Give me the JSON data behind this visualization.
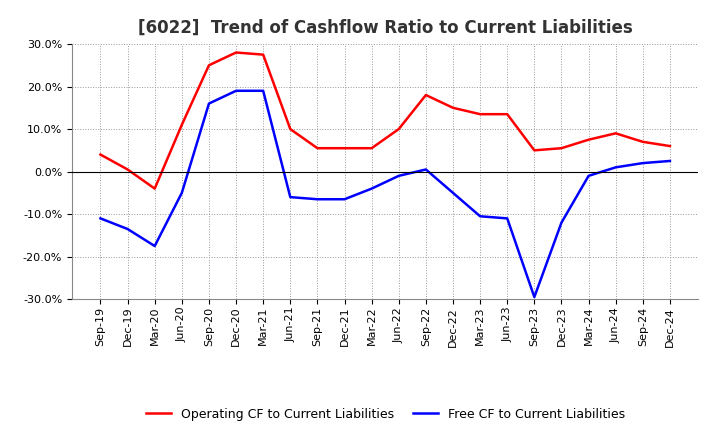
{
  "title": "[6022]  Trend of Cashflow Ratio to Current Liabilities",
  "x_labels": [
    "Sep-19",
    "Dec-19",
    "Mar-20",
    "Jun-20",
    "Sep-20",
    "Dec-20",
    "Mar-21",
    "Jun-21",
    "Sep-21",
    "Dec-21",
    "Mar-22",
    "Jun-22",
    "Sep-22",
    "Dec-22",
    "Mar-23",
    "Jun-23",
    "Sep-23",
    "Dec-23",
    "Mar-24",
    "Jun-24",
    "Sep-24",
    "Dec-24"
  ],
  "operating_cf": [
    4.0,
    0.5,
    -4.0,
    11.0,
    25.0,
    28.0,
    27.5,
    10.0,
    5.5,
    5.5,
    5.5,
    10.0,
    18.0,
    15.0,
    13.5,
    13.5,
    5.0,
    5.5,
    7.5,
    9.0,
    7.0,
    6.0
  ],
  "free_cf": [
    -11.0,
    -13.5,
    -17.5,
    -5.0,
    16.0,
    19.0,
    19.0,
    -6.0,
    -6.5,
    -6.5,
    -4.0,
    -1.0,
    0.5,
    -5.0,
    -10.5,
    -11.0,
    -29.5,
    -12.0,
    -1.0,
    1.0,
    2.0,
    2.5
  ],
  "operating_color": "#FF0000",
  "free_color": "#0000FF",
  "ylim": [
    -30.0,
    30.0
  ],
  "yticks": [
    -30.0,
    -20.0,
    -10.0,
    0.0,
    10.0,
    20.0,
    30.0
  ],
  "background_color": "#FFFFFF",
  "grid_color": "#999999",
  "title_fontsize": 12,
  "axis_fontsize": 8,
  "legend_fontsize": 9,
  "line_width": 1.8
}
